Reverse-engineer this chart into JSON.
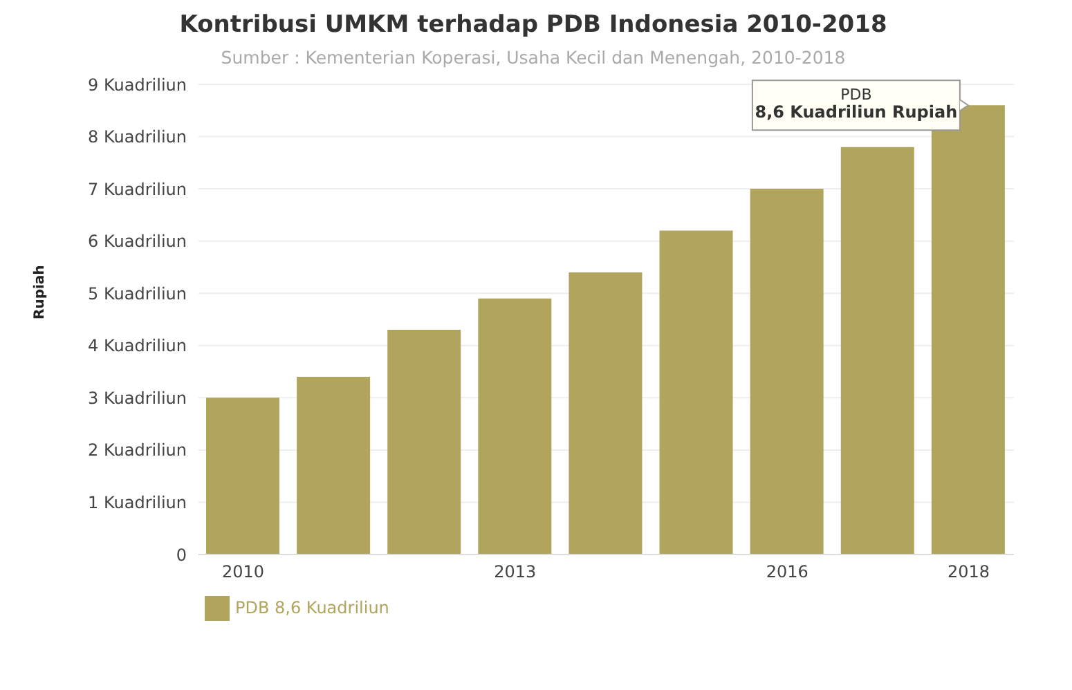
{
  "chart_data": {
    "type": "bar",
    "title": "Kontribusi UMKM terhadap PDB Indonesia 2010-2018",
    "subtitle": "Sumber : Kementerian Koperasi, Usaha Kecil dan Menengah, 2010-2018",
    "ylabel": "Rupiah",
    "categories": [
      "2010",
      null,
      null,
      "2013",
      null,
      null,
      "2016",
      null,
      "2018"
    ],
    "series": [
      {
        "name": "PDB 8,6 Kuadriliun",
        "color": "#b1a45c",
        "values": [
          3.0,
          3.4,
          4.3,
          4.9,
          5.4,
          6.2,
          7.0,
          7.8,
          8.6
        ]
      }
    ],
    "ylim": [
      0,
      9
    ],
    "yticks": [
      {
        "value": 0,
        "label": "0"
      },
      {
        "value": 1,
        "label": "1 Kuadriliun"
      },
      {
        "value": 2,
        "label": "2 Kuadriliun"
      },
      {
        "value": 3,
        "label": "3 Kuadriliun"
      },
      {
        "value": 4,
        "label": "4 Kuadriliun"
      },
      {
        "value": 5,
        "label": "5 Kuadriliun"
      },
      {
        "value": 6,
        "label": "6 Kuadriliun"
      },
      {
        "value": 7,
        "label": "7 Kuadriliun"
      },
      {
        "value": 8,
        "label": "8 Kuadriliun"
      },
      {
        "value": 9,
        "label": "9 Kuadriliun"
      }
    ],
    "annotations": [
      "PDB",
      {
        "text": "8,6 Kuadriliun Rupiah",
        "x": "2018",
        "y": 8.6
      }
    ],
    "grid": "y",
    "legend": "bottom left"
  }
}
